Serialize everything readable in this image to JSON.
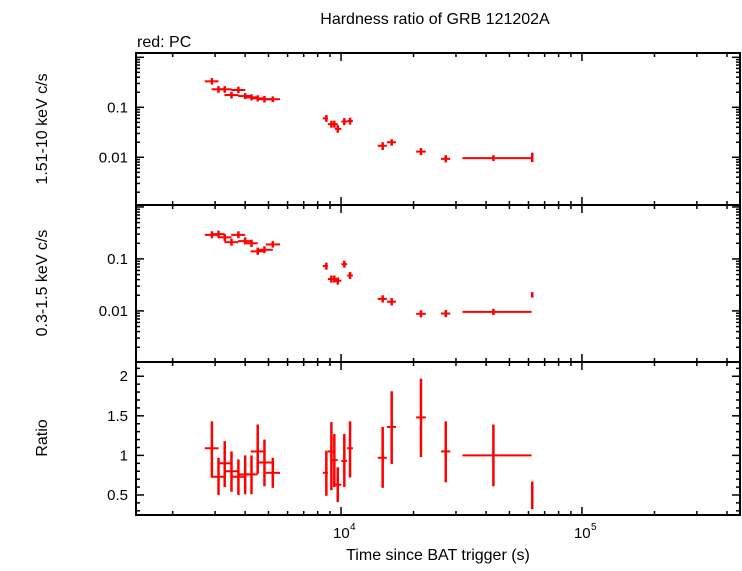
{
  "chart_data": {
    "type": "scatter",
    "title": "Hardness ratio of GRB 121202A",
    "annotation": "red: PC",
    "xlabel": "Time since BAT trigger (s)",
    "xscale": "log",
    "xlim": [
      1409,
      453000
    ],
    "x_ticks": [
      {
        "base": "10",
        "exp": "4",
        "value": 10000
      },
      {
        "base": "10",
        "exp": "5",
        "value": 100000
      }
    ],
    "color": "#ff0000",
    "time": [
      2910,
      3100,
      3290,
      3510,
      3750,
      4000,
      4250,
      4510,
      4810,
      5210,
      8690,
      9120,
      9380,
      9690,
      10320,
      10900,
      14890,
      16230,
      21470,
      27200,
      42900,
      62200
    ],
    "time_lo": [
      2720,
      2900,
      3080,
      3280,
      3500,
      3740,
      3970,
      4220,
      4500,
      4870,
      8400,
      8820,
      9120,
      9420,
      10030,
      10600,
      14200,
      15500,
      20500,
      26000,
      31900,
      61500
    ],
    "time_hi": [
      3100,
      3290,
      3510,
      3750,
      4000,
      4250,
      4510,
      4810,
      5210,
      5580,
      8820,
      9380,
      9690,
      10030,
      10600,
      11200,
      15500,
      16900,
      22500,
      28400,
      61800,
      62900
    ],
    "panels": [
      {
        "ylabel": "1.51-10 keV c/s",
        "yscale": "log",
        "ylim": [
          0.00111,
          1.22
        ],
        "y_ticks": [
          {
            "label": "0.1",
            "value": 0.1
          },
          {
            "label": "0.01",
            "value": 0.01
          }
        ],
        "values": [
          0.331,
          0.229,
          0.229,
          0.176,
          0.222,
          0.168,
          0.158,
          0.151,
          0.145,
          0.145,
          0.06,
          0.046,
          0.046,
          0.037,
          0.052,
          0.053,
          0.017,
          0.02,
          0.013,
          0.0093,
          0.0096,
          0.01
        ],
        "err_lo": [
          0.285,
          0.195,
          0.195,
          0.15,
          0.192,
          0.146,
          0.137,
          0.131,
          0.125,
          0.127,
          0.051,
          0.039,
          0.039,
          0.031,
          0.044,
          0.045,
          0.014,
          0.017,
          0.011,
          0.0079,
          0.0084,
          0.008
        ],
        "err_hi": [
          0.385,
          0.265,
          0.265,
          0.205,
          0.258,
          0.193,
          0.182,
          0.174,
          0.168,
          0.165,
          0.07,
          0.054,
          0.054,
          0.044,
          0.061,
          0.062,
          0.02,
          0.023,
          0.0153,
          0.011,
          0.011,
          0.0124
        ]
      },
      {
        "ylabel": "0.3-1.5 keV c/s",
        "yscale": "log",
        "ylim": [
          0.00104,
          1.09
        ],
        "y_ticks": [
          {
            "label": "0.1",
            "value": 0.1
          },
          {
            "label": "0.01",
            "value": 0.01
          }
        ],
        "values": [
          0.29,
          0.3,
          0.26,
          0.21,
          0.29,
          0.22,
          0.2,
          0.14,
          0.15,
          0.19,
          0.073,
          0.041,
          0.041,
          0.038,
          0.079,
          0.048,
          0.017,
          0.015,
          0.0088,
          0.0089,
          0.0096,
          0.02
        ],
        "err_lo": [
          0.25,
          0.26,
          0.22,
          0.18,
          0.25,
          0.19,
          0.17,
          0.12,
          0.13,
          0.165,
          0.062,
          0.035,
          0.035,
          0.032,
          0.068,
          0.041,
          0.0145,
          0.0127,
          0.0075,
          0.0076,
          0.0083,
          0.018
        ],
        "err_hi": [
          0.34,
          0.35,
          0.3,
          0.245,
          0.34,
          0.26,
          0.235,
          0.165,
          0.175,
          0.22,
          0.085,
          0.048,
          0.048,
          0.044,
          0.092,
          0.056,
          0.02,
          0.0177,
          0.0103,
          0.0104,
          0.011,
          0.023
        ]
      },
      {
        "ylabel": "Ratio",
        "yscale": "linear",
        "ylim": [
          0.247,
          2.18
        ],
        "y_ticks": [
          {
            "label": "0.5",
            "value": 0.5
          },
          {
            "label": "1",
            "value": 1
          },
          {
            "label": "1.5",
            "value": 1.5
          },
          {
            "label": "2",
            "value": 2
          }
        ],
        "values": [
          1.09,
          0.73,
          0.9,
          0.8,
          0.73,
          0.76,
          0.76,
          1.05,
          0.91,
          0.78,
          0.78,
          1.05,
          0.94,
          0.63,
          0.93,
          1.09,
          0.97,
          1.36,
          1.48,
          1.05,
          1.0,
          0.5
        ],
        "err_lo": [
          0.72,
          0.5,
          0.6,
          0.54,
          0.5,
          0.51,
          0.51,
          0.77,
          0.61,
          0.59,
          0.49,
          0.56,
          0.6,
          0.41,
          0.6,
          0.72,
          0.59,
          0.89,
          0.98,
          0.66,
          0.61,
          0.32
        ],
        "err_hi": [
          1.43,
          0.97,
          1.18,
          1.05,
          0.95,
          1.0,
          1.0,
          1.39,
          1.2,
          0.97,
          1.06,
          1.42,
          1.27,
          0.85,
          1.27,
          1.43,
          1.36,
          1.81,
          1.97,
          1.43,
          1.39,
          0.67
        ]
      }
    ]
  }
}
